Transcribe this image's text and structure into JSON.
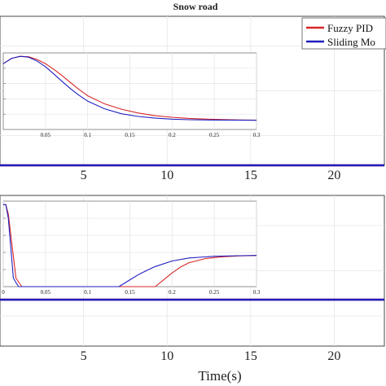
{
  "figure": {
    "title": "Snow road",
    "xlabel": "Time(s)"
  },
  "colors": {
    "fuzzy": "#d62728",
    "sliding": "#1f1fbf",
    "grid": "#e6e6e6",
    "axis": "#333333",
    "inset_axis": "#777777"
  },
  "chart_data": [
    {
      "type": "line",
      "name": "upper-main",
      "title": "Snow road",
      "xlabel": "",
      "ylabel": "",
      "xlim": [
        0,
        23
      ],
      "xticks": [
        5,
        10,
        15,
        20
      ],
      "grid": true,
      "legend": {
        "placement": "top-right",
        "entries": [
          "Fuzzy PID",
          "Sliding Mo"
        ]
      },
      "series": [
        {
          "name": "Fuzzy PID",
          "x": [
            0,
            23
          ],
          "y": [
            0.5,
            0.5
          ]
        },
        {
          "name": "Sliding Mo",
          "x": [
            0,
            23
          ],
          "y": [
            0.5,
            0.5
          ]
        }
      ]
    },
    {
      "type": "line",
      "name": "upper-inset",
      "xlim": [
        0,
        0.3
      ],
      "xticks": [
        0.05,
        0.1,
        0.15,
        0.2,
        0.25,
        0.3
      ],
      "xtick_labels": [
        "0.05",
        "0.1",
        "0.15",
        "0.2",
        "0.25",
        "0.3"
      ],
      "ylim": [
        0,
        1
      ],
      "grid": true,
      "series": [
        {
          "name": "Fuzzy PID",
          "x": [
            0,
            0.01,
            0.02,
            0.03,
            0.04,
            0.05,
            0.06,
            0.07,
            0.08,
            0.09,
            0.1,
            0.12,
            0.14,
            0.16,
            0.18,
            0.2,
            0.22,
            0.25,
            0.28,
            0.3
          ],
          "y": [
            0.86,
            0.93,
            0.955,
            0.95,
            0.915,
            0.86,
            0.785,
            0.7,
            0.61,
            0.52,
            0.44,
            0.335,
            0.265,
            0.215,
            0.18,
            0.16,
            0.145,
            0.132,
            0.125,
            0.122
          ]
        },
        {
          "name": "Sliding Mo",
          "x": [
            0,
            0.01,
            0.02,
            0.03,
            0.04,
            0.05,
            0.06,
            0.07,
            0.08,
            0.09,
            0.1,
            0.12,
            0.14,
            0.16,
            0.18,
            0.2,
            0.22,
            0.25,
            0.28,
            0.3
          ],
          "y": [
            0.86,
            0.93,
            0.955,
            0.945,
            0.895,
            0.82,
            0.725,
            0.625,
            0.53,
            0.445,
            0.37,
            0.27,
            0.205,
            0.17,
            0.148,
            0.135,
            0.128,
            0.123,
            0.121,
            0.12
          ]
        }
      ]
    },
    {
      "type": "line",
      "name": "lower-main",
      "xlabel": "Time(s)",
      "xlim": [
        0,
        23
      ],
      "xticks": [
        5,
        10,
        15,
        20
      ],
      "grid": true,
      "series": [
        {
          "name": "Fuzzy PID",
          "x": [
            0,
            23
          ],
          "y": [
            0.5,
            0.5
          ]
        },
        {
          "name": "Sliding Mo",
          "x": [
            0,
            23
          ],
          "y": [
            0.5,
            0.5
          ]
        }
      ]
    },
    {
      "type": "line",
      "name": "lower-inset",
      "xlim": [
        0,
        0.3
      ],
      "xticks": [
        0,
        0.05,
        0.1,
        0.15,
        0.2,
        0.25,
        0.3
      ],
      "xtick_labels": [
        "0",
        "0.05",
        "0.1",
        "0.15",
        "0.2",
        "0.25",
        "0.3"
      ],
      "ylim": [
        0,
        1
      ],
      "grid": true,
      "series": [
        {
          "name": "Fuzzy PID",
          "x": [
            0,
            0.003,
            0.006,
            0.015,
            0.022,
            0.06,
            0.12,
            0.18,
            0.19,
            0.2,
            0.21,
            0.22,
            0.24,
            0.26,
            0.28,
            0.3
          ],
          "y": [
            0.96,
            0.96,
            0.85,
            0.1,
            0.0,
            0.0,
            0.0,
            0.0,
            0.08,
            0.16,
            0.23,
            0.28,
            0.33,
            0.35,
            0.36,
            0.365
          ]
        },
        {
          "name": "Sliding Mo",
          "x": [
            0,
            0.003,
            0.006,
            0.012,
            0.018,
            0.06,
            0.12,
            0.137,
            0.15,
            0.16,
            0.17,
            0.18,
            0.2,
            0.22,
            0.25,
            0.28,
            0.3
          ],
          "y": [
            0.96,
            0.96,
            0.8,
            0.1,
            0.0,
            0.0,
            0.0,
            0.0,
            0.08,
            0.14,
            0.19,
            0.235,
            0.3,
            0.335,
            0.355,
            0.362,
            0.365
          ]
        }
      ]
    }
  ]
}
